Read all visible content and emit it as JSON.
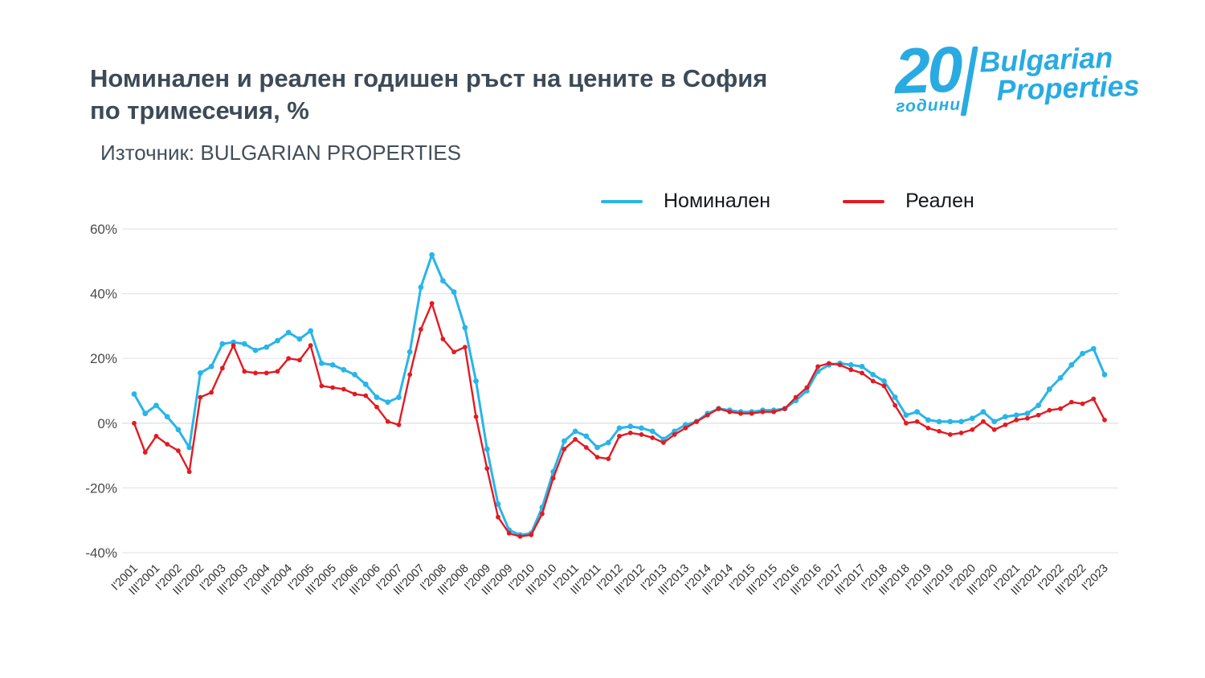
{
  "header": {
    "title_line1": "Номинален и реален годишен ръст на цените в София",
    "title_line2": "по тримесечия, %",
    "source": "Източник: BULGARIAN PROPERTIES"
  },
  "logo": {
    "number": "20",
    "years": "години",
    "brand_line1": "Bulgarian",
    "brand_line2": "Properties",
    "color": "#29ABE2"
  },
  "legend": [
    {
      "label": "Номинален",
      "color": "#29B5E8"
    },
    {
      "label": "Реален",
      "color": "#E11B22"
    }
  ],
  "chart_data": {
    "type": "line",
    "title": "Номинален и реален годишен ръст на цените в София по тримесечия, %",
    "xlabel": "",
    "ylabel": "",
    "ylim": [
      -40,
      60
    ],
    "yticks": [
      60,
      40,
      20,
      0,
      -20,
      -40
    ],
    "ytick_suffix": "%",
    "grid": true,
    "legend_position": "top",
    "x_ticks_every": 2,
    "x": [
      "I'2001",
      "II'2001",
      "III'2001",
      "IV'2001",
      "I'2002",
      "II'2002",
      "III'2002",
      "IV'2002",
      "I'2003",
      "II'2003",
      "III'2003",
      "IV'2003",
      "I'2004",
      "II'2004",
      "III'2004",
      "IV'2004",
      "I'2005",
      "II'2005",
      "III'2005",
      "IV'2005",
      "I'2006",
      "II'2006",
      "III'2006",
      "IV'2006",
      "I'2007",
      "II'2007",
      "III'2007",
      "IV'2007",
      "I'2008",
      "II'2008",
      "III'2008",
      "IV'2008",
      "I'2009",
      "II'2009",
      "III'2009",
      "IV'2009",
      "I'2010",
      "II'2010",
      "III'2010",
      "IV'2010",
      "I'2011",
      "II'2011",
      "III'2011",
      "IV'2011",
      "I'2012",
      "II'2012",
      "III'2012",
      "IV'2012",
      "I'2013",
      "II'2013",
      "III'2013",
      "IV'2013",
      "I'2014",
      "II'2014",
      "III'2014",
      "IV'2014",
      "I'2015",
      "II'2015",
      "III'2015",
      "IV'2015",
      "I'2016",
      "II'2016",
      "III'2016",
      "IV'2016",
      "I'2017",
      "II'2017",
      "III'2017",
      "IV'2017",
      "I'2018",
      "II'2018",
      "III'2018",
      "IV'2018",
      "I'2019",
      "II'2019",
      "III'2019",
      "IV'2019",
      "I'2020",
      "II'2020",
      "III'2020",
      "IV'2020",
      "I'2021",
      "II'2021",
      "III'2021",
      "IV'2021",
      "I'2022",
      "II'2022",
      "III'2022",
      "IV'2022",
      "I'2023"
    ],
    "series": [
      {
        "name": "Номинален",
        "color": "#29B5E8",
        "values": [
          9,
          3,
          5.5,
          2,
          -2,
          -7.5,
          15.5,
          17.5,
          24.5,
          25,
          24.5,
          22.5,
          23.5,
          25.5,
          28,
          26,
          28.5,
          18.5,
          18,
          16.5,
          15,
          12,
          8,
          6.5,
          8,
          22,
          42,
          52,
          44,
          40.5,
          29.5,
          13,
          -8,
          -25,
          -33,
          -34.5,
          -34,
          -26,
          -15,
          -5.5,
          -2.5,
          -4,
          -7.5,
          -6,
          -1.5,
          -1,
          -1.5,
          -2.5,
          -5,
          -2.5,
          -0.5,
          0.5,
          3,
          4.5,
          4,
          3.5,
          3.5,
          4,
          4,
          4.5,
          7,
          10,
          16,
          18,
          18.5,
          18,
          17.5,
          15,
          13,
          8,
          2.5,
          3.5,
          1,
          0.5,
          0.5,
          0.5,
          1.5,
          3.5,
          0.5,
          2,
          2.5,
          3,
          5.5,
          10.5,
          14,
          18,
          21.5,
          23,
          15
        ]
      },
      {
        "name": "Реален",
        "color": "#E11B22",
        "values": [
          0,
          -9,
          -4,
          -6.5,
          -8.5,
          -15,
          8,
          9.5,
          17,
          24,
          16,
          15.5,
          15.5,
          16,
          20,
          19.5,
          24,
          11.5,
          11,
          10.5,
          9,
          8.5,
          5,
          0.5,
          -0.5,
          15,
          29,
          37,
          26,
          22,
          23.5,
          2,
          -14,
          -29,
          -34,
          -35,
          -34.5,
          -28,
          -17,
          -8,
          -5,
          -7.5,
          -10.5,
          -11,
          -4,
          -3,
          -3.5,
          -4.5,
          -6,
          -3.5,
          -1.5,
          0.5,
          2.5,
          4.5,
          3.5,
          3,
          3,
          3.5,
          3.5,
          4.5,
          8,
          11,
          17.5,
          18.5,
          18,
          16.5,
          15.5,
          13,
          11.5,
          5.5,
          0,
          0.5,
          -1.5,
          -2.5,
          -3.5,
          -3,
          -2,
          0.5,
          -2,
          -0.5,
          1,
          1.5,
          2.5,
          4,
          4.5,
          6.5,
          6,
          7.5,
          1
        ]
      }
    ]
  }
}
